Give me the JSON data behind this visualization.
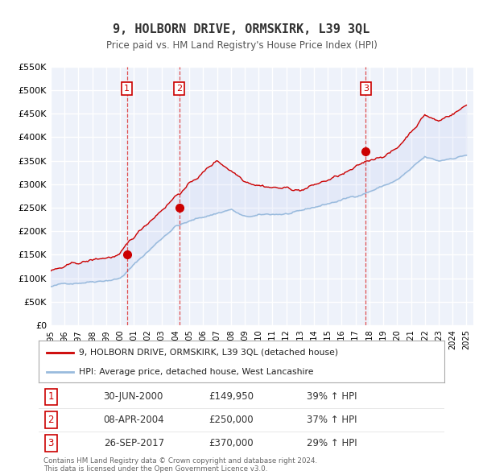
{
  "title": "9, HOLBORN DRIVE, ORMSKIRK, L39 3QL",
  "subtitle": "Price paid vs. HM Land Registry's House Price Index (HPI)",
  "ylim": [
    0,
    550000
  ],
  "yticks": [
    0,
    50000,
    100000,
    150000,
    200000,
    250000,
    300000,
    350000,
    400000,
    450000,
    500000,
    550000
  ],
  "ytick_labels": [
    "£0",
    "£50K",
    "£100K",
    "£150K",
    "£200K",
    "£250K",
    "£300K",
    "£350K",
    "£400K",
    "£450K",
    "£500K",
    "£550K"
  ],
  "xlim_start": 1995.0,
  "xlim_end": 2025.5,
  "xticks": [
    1995,
    1996,
    1997,
    1998,
    1999,
    2000,
    2001,
    2002,
    2003,
    2004,
    2005,
    2006,
    2007,
    2008,
    2009,
    2010,
    2011,
    2012,
    2013,
    2014,
    2015,
    2016,
    2017,
    2018,
    2019,
    2020,
    2021,
    2022,
    2023,
    2024,
    2025
  ],
  "sale_color": "#cc0000",
  "hpi_color": "#99bbdd",
  "sale_marker_color": "#cc0000",
  "bg_color": "#ffffff",
  "chart_bg": "#eef2fa",
  "grid_color": "#ffffff",
  "transactions": [
    {
      "num": 1,
      "date_str": "30-JUN-2000",
      "date_x": 2000.5,
      "price": 149950,
      "pct": "39%",
      "dir": "↑"
    },
    {
      "num": 2,
      "date_str": "08-APR-2004",
      "date_x": 2004.27,
      "price": 250000,
      "pct": "37%",
      "dir": "↑"
    },
    {
      "num": 3,
      "date_str": "26-SEP-2017",
      "date_x": 2017.73,
      "price": 370000,
      "pct": "29%",
      "dir": "↑"
    }
  ],
  "legend_label_sale": "9, HOLBORN DRIVE, ORMSKIRK, L39 3QL (detached house)",
  "legend_label_hpi": "HPI: Average price, detached house, West Lancashire",
  "footer1": "Contains HM Land Registry data © Crown copyright and database right 2024.",
  "footer2": "This data is licensed under the Open Government Licence v3.0."
}
